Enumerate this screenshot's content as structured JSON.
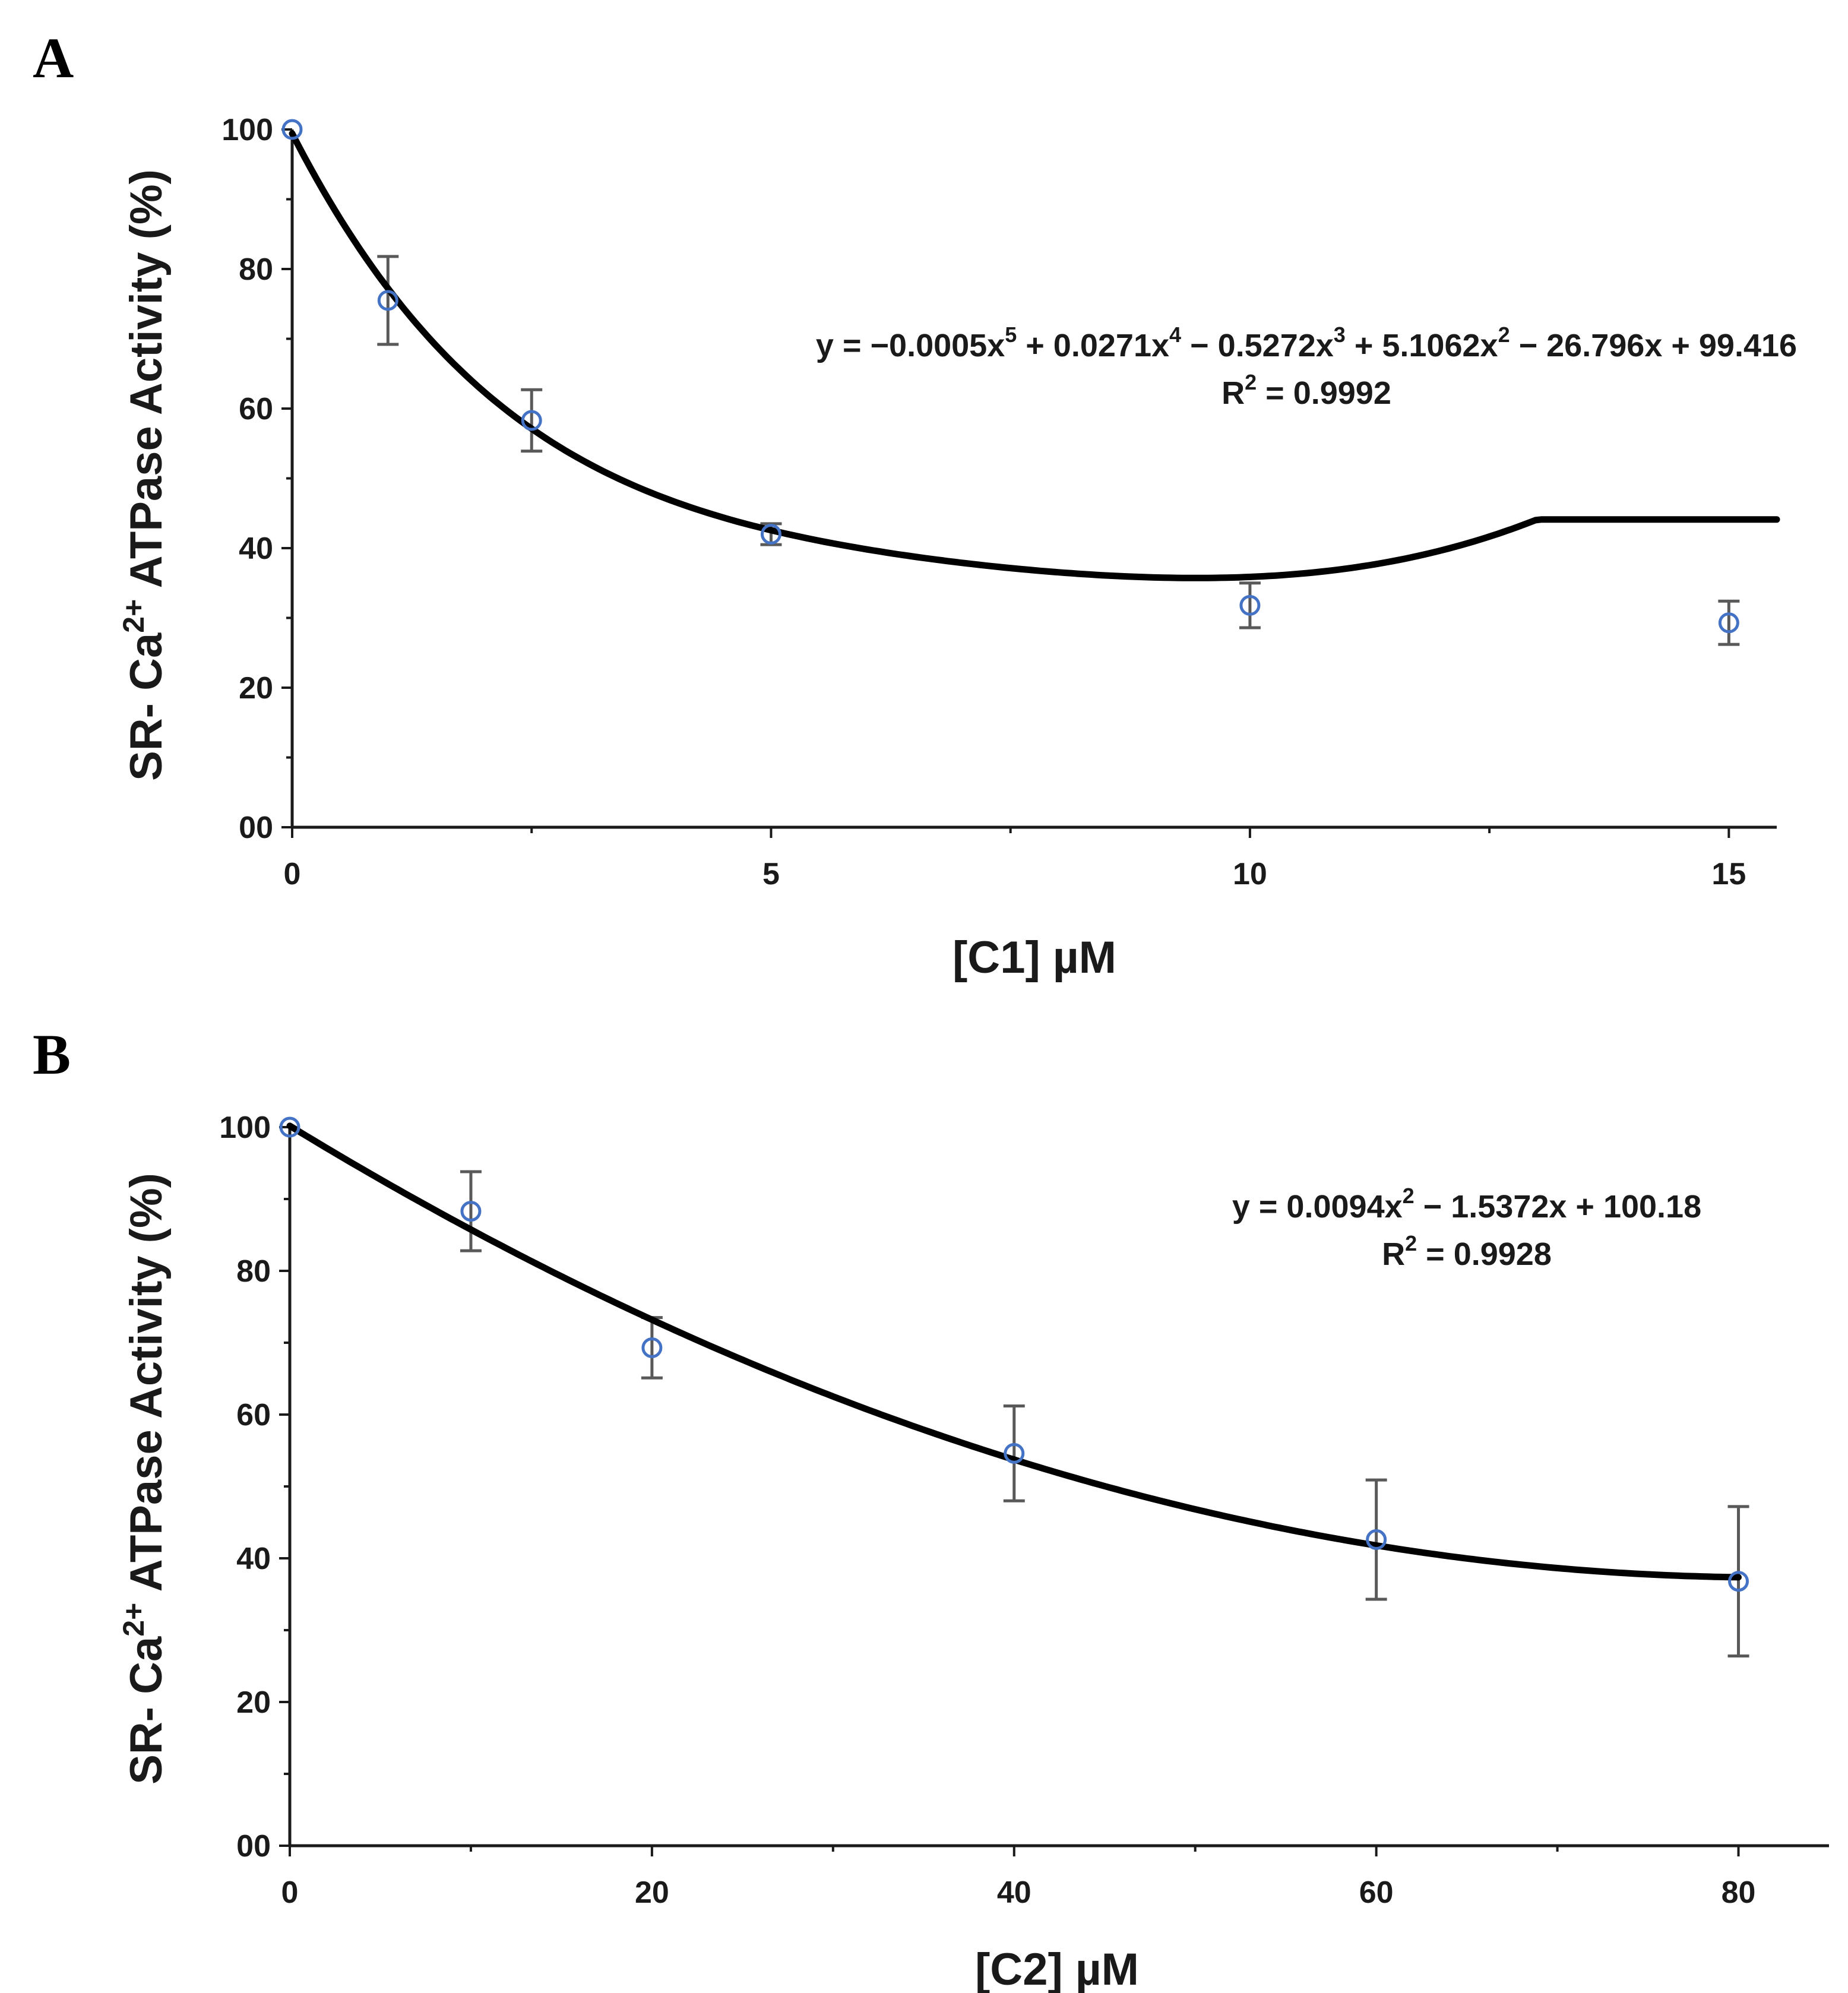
{
  "chart_data": [
    {
      "panel": "A",
      "type": "scatter",
      "xlabel": "[C1] µM",
      "ylabel_prefix": "SR- Ca",
      "ylabel_sup": "2+",
      "ylabel_suffix": " ATPase Activity (%)",
      "xlim": [
        0,
        15.5
      ],
      "ylim": [
        0,
        100
      ],
      "x_ticks": [
        0,
        5,
        10,
        15
      ],
      "x_tick_labels": [
        "0",
        "5",
        "10",
        "15"
      ],
      "x_minor_ticks": [
        2.5,
        7.5,
        12.5
      ],
      "y_ticks": [
        0,
        20,
        40,
        60,
        80,
        100
      ],
      "y_tick_labels": [
        "00",
        "20",
        "40",
        "60",
        "80",
        "100"
      ],
      "y_minor_ticks": [
        10,
        30,
        50,
        70,
        90
      ],
      "marker_color": "#4472C4",
      "points": [
        {
          "x": 0,
          "y": 100,
          "err": 0
        },
        {
          "x": 1,
          "y": 75.5,
          "err": 6.3
        },
        {
          "x": 2.5,
          "y": 58.3,
          "err": 4.4
        },
        {
          "x": 5,
          "y": 42,
          "err": 1.5
        },
        {
          "x": 10,
          "y": 31.8,
          "err": 3.2
        },
        {
          "x": 15,
          "y": 29.3,
          "err": 3.1
        }
      ],
      "fit": {
        "coefficients": [
          -0.0005,
          0.0271,
          -0.5272,
          5.1062,
          -26.796,
          99.416
        ],
        "x_range": [
          0,
          15.5
        ],
        "plateau_from": 13,
        "equation_text": [
          {
            "t": "y = −0.0005x"
          },
          {
            "sup": "5"
          },
          {
            "t": " + 0.0271x"
          },
          {
            "sup": "4"
          },
          {
            "t": " − 0.5272x"
          },
          {
            "sup": "3"
          },
          {
            "t": " + 5.1062x"
          },
          {
            "sup": "2"
          },
          {
            "t": " − 26.796x + 99.416"
          }
        ],
        "r2_text": [
          {
            "t": "R"
          },
          {
            "sup": "2"
          },
          {
            "t": " = 0.9992"
          }
        ]
      }
    },
    {
      "panel": "B",
      "type": "scatter",
      "xlabel": "[C2] µM",
      "ylabel_prefix": "SR- Ca",
      "ylabel_sup": "2+",
      "ylabel_suffix": " ATPase Activity (%)",
      "xlim": [
        0,
        85
      ],
      "ylim": [
        0,
        100
      ],
      "x_ticks": [
        0,
        20,
        40,
        60,
        80
      ],
      "x_tick_labels": [
        "0",
        "20",
        "40",
        "60",
        "80"
      ],
      "x_minor_ticks": [
        10,
        30,
        50,
        70
      ],
      "y_ticks": [
        0,
        20,
        40,
        60,
        80,
        100
      ],
      "y_tick_labels": [
        "00",
        "20",
        "40",
        "60",
        "80",
        "100"
      ],
      "y_minor_ticks": [
        10,
        30,
        50,
        70,
        90
      ],
      "marker_color": "#4472C4",
      "points": [
        {
          "x": 0,
          "y": 100,
          "err": 0
        },
        {
          "x": 10,
          "y": 88.3,
          "err": 5.5
        },
        {
          "x": 20,
          "y": 69.3,
          "err": 4.2
        },
        {
          "x": 40,
          "y": 54.6,
          "err": 6.6
        },
        {
          "x": 60,
          "y": 42.6,
          "err": 8.3
        },
        {
          "x": 80,
          "y": 36.8,
          "err": 10.4
        }
      ],
      "fit": {
        "coefficients": [
          0.0094,
          -1.5372,
          100.18
        ],
        "x_range": [
          0,
          80
        ],
        "equation_text": [
          {
            "t": "y = 0.0094x"
          },
          {
            "sup": "2"
          },
          {
            "t": " − 1.5372x + 100.18"
          }
        ],
        "r2_text": [
          {
            "t": "R"
          },
          {
            "sup": "2"
          },
          {
            "t": " = 0.9928"
          }
        ]
      }
    }
  ]
}
